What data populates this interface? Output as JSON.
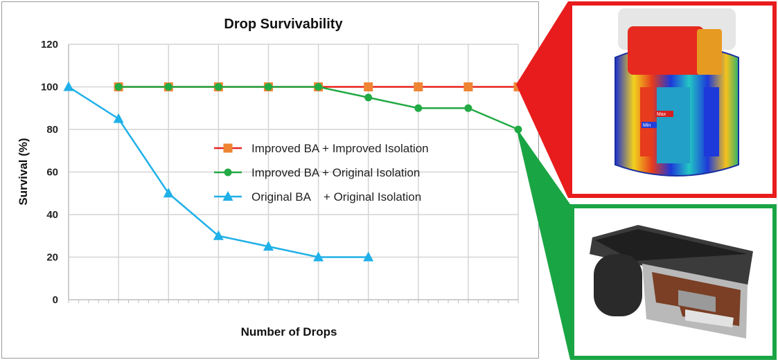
{
  "chart_data": {
    "type": "line",
    "title": "Drop Survivability",
    "xlabel": "Number of Drops",
    "ylabel": "Survival (%)",
    "ylim": [
      0,
      120
    ],
    "yticks": [
      0,
      20,
      40,
      60,
      80,
      100,
      120
    ],
    "x": [
      0,
      1,
      2,
      3,
      4,
      5,
      6,
      7,
      8,
      9
    ],
    "grid": true,
    "legend_position": "center",
    "series": [
      {
        "name": "Improved BA + Improved Isolation",
        "color": "#e8231d",
        "marker": "square",
        "marker_color": "#ef8533",
        "x": [
          1,
          2,
          3,
          4,
          5,
          6,
          7,
          8,
          9
        ],
        "values": [
          100,
          100,
          100,
          100,
          100,
          100,
          100,
          100,
          100
        ]
      },
      {
        "name": "Improved BA + Original Isolation",
        "color": "#22aa44",
        "marker": "circle",
        "marker_color": "#22aa44",
        "x": [
          1,
          2,
          3,
          4,
          5,
          6,
          7,
          8,
          9
        ],
        "values": [
          100,
          100,
          100,
          100,
          100,
          95,
          90,
          90,
          80
        ]
      },
      {
        "name": "Original BA    + Original Isolation",
        "color": "#1fb0e8",
        "marker": "triangle",
        "marker_color": "#1fb0e8",
        "x": [
          0,
          1,
          2,
          3,
          4,
          5,
          6
        ],
        "values": [
          100,
          85,
          50,
          30,
          25,
          20,
          20
        ]
      }
    ]
  },
  "insets": {
    "top": {
      "frame_color": "#e81c1c",
      "label_max": "Max",
      "label_min": "Min"
    },
    "bottom": {
      "frame_color": "#1aa544"
    }
  }
}
